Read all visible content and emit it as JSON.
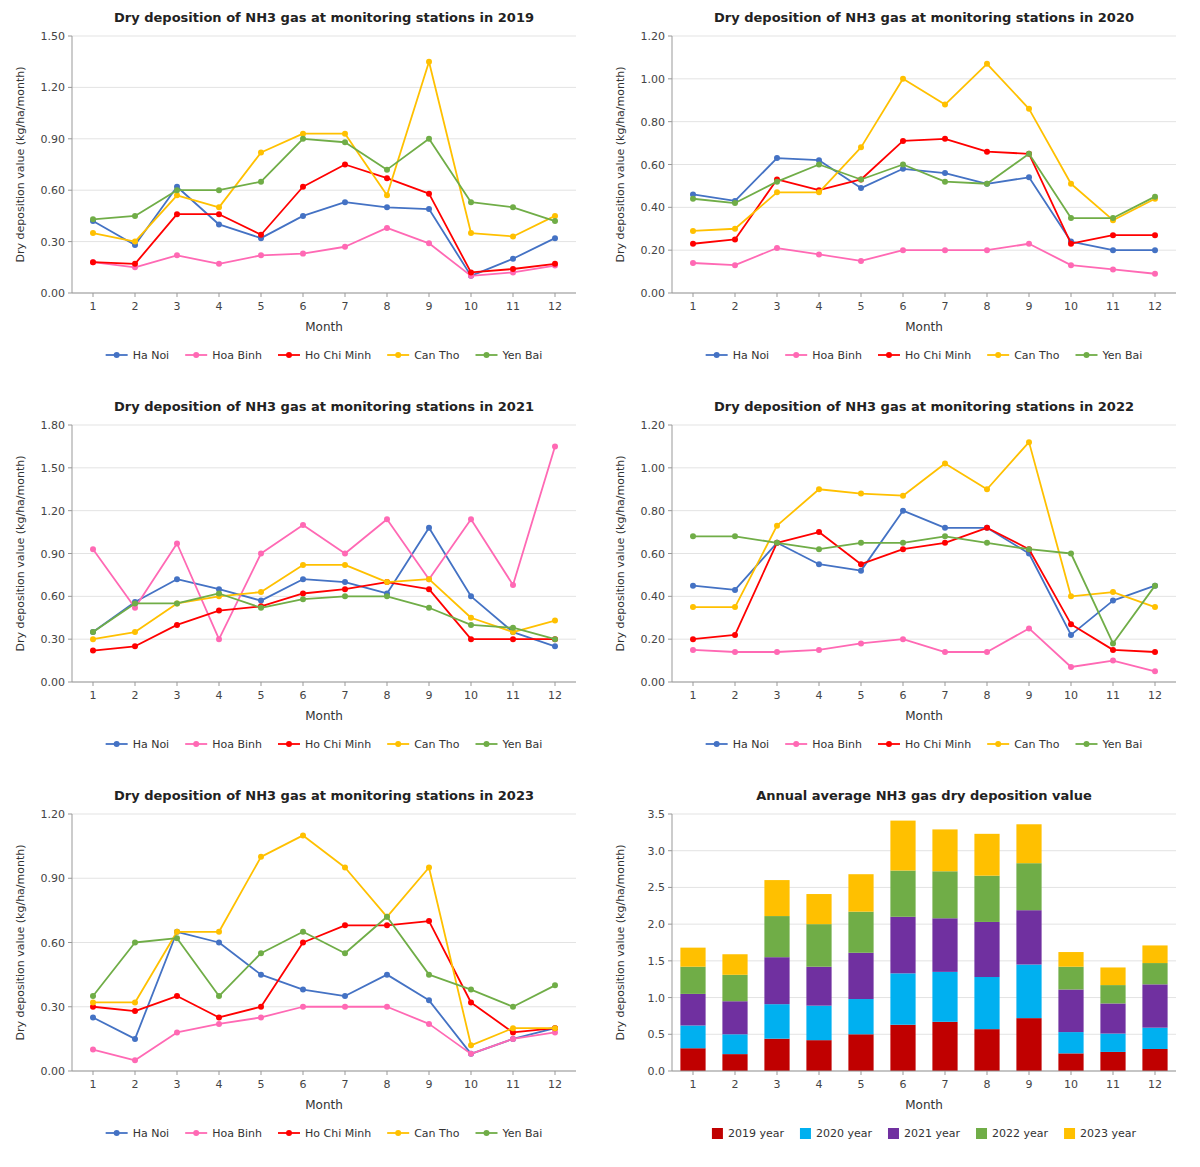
{
  "chart_data": [
    {
      "type": "line",
      "title": "Dry deposition of NH3 gas at monitoring stations in 2019",
      "xlabel": "Month",
      "ylabel": "Dry deposition value (kg/ha/month)",
      "x": [
        1,
        2,
        3,
        4,
        5,
        6,
        7,
        8,
        9,
        10,
        11,
        12
      ],
      "xlim": [
        0.5,
        12.5
      ],
      "xticks": [
        1,
        2,
        3,
        4,
        5,
        6,
        7,
        8,
        9,
        10,
        11,
        12
      ],
      "ylim": [
        0.0,
        1.5
      ],
      "yticks": [
        {
          "value": 0.0,
          "label": "0.00"
        },
        {
          "value": 0.3,
          "label": "0.30"
        },
        {
          "value": 0.6,
          "label": "0.60"
        },
        {
          "value": 0.9,
          "label": "0.90"
        },
        {
          "value": 1.2,
          "label": "1.20"
        },
        {
          "value": 1.5,
          "label": "1.50"
        }
      ],
      "grid": true,
      "legend": "bottom",
      "marker": "circle",
      "series": [
        {
          "name": "Ha Noi",
          "color": "#4472C4",
          "values": [
            0.42,
            0.28,
            0.62,
            0.4,
            0.32,
            0.45,
            0.53,
            0.5,
            0.49,
            0.1,
            0.2,
            0.32
          ]
        },
        {
          "name": "Hoa Binh",
          "color": "#FF69B4",
          "values": [
            0.18,
            0.15,
            0.22,
            0.17,
            0.22,
            0.23,
            0.27,
            0.38,
            0.29,
            0.1,
            0.12,
            0.16
          ]
        },
        {
          "name": "Ho Chi Minh",
          "color": "#FF0000",
          "values": [
            0.18,
            0.17,
            0.46,
            0.46,
            0.34,
            0.62,
            0.75,
            0.67,
            0.58,
            0.12,
            0.14,
            0.17
          ]
        },
        {
          "name": "Can Tho",
          "color": "#FFC000",
          "values": [
            0.35,
            0.3,
            0.57,
            0.5,
            0.82,
            0.93,
            0.93,
            0.57,
            1.35,
            0.35,
            0.33,
            0.45
          ]
        },
        {
          "name": "Yen Bai",
          "color": "#70AD47",
          "values": [
            0.43,
            0.45,
            0.6,
            0.6,
            0.65,
            0.9,
            0.88,
            0.72,
            0.9,
            0.53,
            0.5,
            0.42
          ]
        }
      ]
    },
    {
      "type": "line",
      "title": "Dry deposition of NH3 gas at monitoring stations in 2020",
      "xlabel": "Month",
      "ylabel": "Dry deposition value (kg/ha/month)",
      "x": [
        1,
        2,
        3,
        4,
        5,
        6,
        7,
        8,
        9,
        10,
        11,
        12
      ],
      "xlim": [
        0.5,
        12.5
      ],
      "xticks": [
        1,
        2,
        3,
        4,
        5,
        6,
        7,
        8,
        9,
        10,
        11,
        12
      ],
      "ylim": [
        0.0,
        1.2
      ],
      "yticks": [
        {
          "value": 0.0,
          "label": "0.00"
        },
        {
          "value": 0.2,
          "label": "0.20"
        },
        {
          "value": 0.4,
          "label": "0.40"
        },
        {
          "value": 0.6,
          "label": "0.60"
        },
        {
          "value": 0.8,
          "label": "0.80"
        },
        {
          "value": 1.0,
          "label": "1.00"
        },
        {
          "value": 1.2,
          "label": "1.20"
        }
      ],
      "grid": true,
      "legend": "bottom",
      "marker": "circle",
      "series": [
        {
          "name": "Ha Noi",
          "color": "#4472C4",
          "values": [
            0.46,
            0.43,
            0.63,
            0.62,
            0.49,
            0.58,
            0.56,
            0.51,
            0.54,
            0.24,
            0.2,
            0.2
          ]
        },
        {
          "name": "Hoa Binh",
          "color": "#FF69B4",
          "values": [
            0.14,
            0.13,
            0.21,
            0.18,
            0.15,
            0.2,
            0.2,
            0.2,
            0.23,
            0.13,
            0.11,
            0.09
          ]
        },
        {
          "name": "Ho Chi Minh",
          "color": "#FF0000",
          "values": [
            0.23,
            0.25,
            0.53,
            0.48,
            0.53,
            0.71,
            0.72,
            0.66,
            0.65,
            0.23,
            0.27,
            0.27
          ]
        },
        {
          "name": "Can Tho",
          "color": "#FFC000",
          "values": [
            0.29,
            0.3,
            0.47,
            0.47,
            0.68,
            1.0,
            0.88,
            1.07,
            0.86,
            0.51,
            0.34,
            0.44
          ]
        },
        {
          "name": "Yen Bai",
          "color": "#70AD47",
          "values": [
            0.44,
            0.42,
            0.52,
            0.6,
            0.53,
            0.6,
            0.52,
            0.51,
            0.65,
            0.35,
            0.35,
            0.45
          ]
        }
      ]
    },
    {
      "type": "line",
      "title": "Dry deposition of NH3 gas at monitoring stations in 2021",
      "xlabel": "Month",
      "ylabel": "Dry deposition value (kg/ha/month)",
      "x": [
        1,
        2,
        3,
        4,
        5,
        6,
        7,
        8,
        9,
        10,
        11,
        12
      ],
      "xlim": [
        0.5,
        12.5
      ],
      "xticks": [
        1,
        2,
        3,
        4,
        5,
        6,
        7,
        8,
        9,
        10,
        11,
        12
      ],
      "ylim": [
        0.0,
        1.8
      ],
      "yticks": [
        {
          "value": 0.0,
          "label": "0.00"
        },
        {
          "value": 0.3,
          "label": "0.30"
        },
        {
          "value": 0.6,
          "label": "0.60"
        },
        {
          "value": 0.9,
          "label": "0.90"
        },
        {
          "value": 1.2,
          "label": "1.20"
        },
        {
          "value": 1.5,
          "label": "1.50"
        },
        {
          "value": 1.8,
          "label": "1.80"
        }
      ],
      "grid": true,
      "legend": "bottom",
      "marker": "circle",
      "series": [
        {
          "name": "Ha Noi",
          "color": "#4472C4",
          "values": [
            0.35,
            0.56,
            0.72,
            0.65,
            0.57,
            0.72,
            0.7,
            0.62,
            1.08,
            0.6,
            0.35,
            0.25
          ]
        },
        {
          "name": "Hoa Binh",
          "color": "#FF69B4",
          "values": [
            0.93,
            0.52,
            0.97,
            0.3,
            0.9,
            1.1,
            0.9,
            1.14,
            0.72,
            1.14,
            0.68,
            1.65
          ]
        },
        {
          "name": "Ho Chi Minh",
          "color": "#FF0000",
          "values": [
            0.22,
            0.25,
            0.4,
            0.5,
            0.53,
            0.62,
            0.65,
            0.7,
            0.65,
            0.3,
            0.3,
            0.3
          ]
        },
        {
          "name": "Can Tho",
          "color": "#FFC000",
          "values": [
            0.3,
            0.35,
            0.55,
            0.6,
            0.63,
            0.82,
            0.82,
            0.7,
            0.72,
            0.45,
            0.35,
            0.43
          ]
        },
        {
          "name": "Yen Bai",
          "color": "#70AD47",
          "values": [
            0.35,
            0.55,
            0.55,
            0.62,
            0.52,
            0.58,
            0.6,
            0.6,
            0.52,
            0.4,
            0.38,
            0.3
          ]
        }
      ]
    },
    {
      "type": "line",
      "title": "Dry deposition of NH3 gas at monitoring stations in 2022",
      "xlabel": "Month",
      "ylabel": "Dry deposition value (kg/ha/month)",
      "x": [
        1,
        2,
        3,
        4,
        5,
        6,
        7,
        8,
        9,
        10,
        11,
        12
      ],
      "xlim": [
        0.5,
        12.5
      ],
      "xticks": [
        1,
        2,
        3,
        4,
        5,
        6,
        7,
        8,
        9,
        10,
        11,
        12
      ],
      "ylim": [
        0.0,
        1.2
      ],
      "yticks": [
        {
          "value": 0.0,
          "label": "0.00"
        },
        {
          "value": 0.2,
          "label": "0.20"
        },
        {
          "value": 0.4,
          "label": "0.40"
        },
        {
          "value": 0.6,
          "label": "0.60"
        },
        {
          "value": 0.8,
          "label": "0.80"
        },
        {
          "value": 1.0,
          "label": "1.00"
        },
        {
          "value": 1.2,
          "label": "1.20"
        }
      ],
      "grid": true,
      "legend": "bottom",
      "marker": "circle",
      "series": [
        {
          "name": "Ha Noi",
          "color": "#4472C4",
          "values": [
            0.45,
            0.43,
            0.65,
            0.55,
            0.52,
            0.8,
            0.72,
            0.72,
            0.6,
            0.22,
            0.38,
            0.45
          ]
        },
        {
          "name": "Hoa Binh",
          "color": "#FF69B4",
          "values": [
            0.15,
            0.14,
            0.14,
            0.15,
            0.18,
            0.2,
            0.14,
            0.14,
            0.25,
            0.07,
            0.1,
            0.05
          ]
        },
        {
          "name": "Ho Chi Minh",
          "color": "#FF0000",
          "values": [
            0.2,
            0.22,
            0.65,
            0.7,
            0.55,
            0.62,
            0.65,
            0.72,
            0.62,
            0.27,
            0.15,
            0.14
          ]
        },
        {
          "name": "Can Tho",
          "color": "#FFC000",
          "values": [
            0.35,
            0.35,
            0.73,
            0.9,
            0.88,
            0.87,
            1.02,
            0.9,
            1.12,
            0.4,
            0.42,
            0.35
          ]
        },
        {
          "name": "Yen Bai",
          "color": "#70AD47",
          "values": [
            0.68,
            0.68,
            0.65,
            0.62,
            0.65,
            0.65,
            0.68,
            0.65,
            0.62,
            0.6,
            0.18,
            0.45
          ]
        }
      ]
    },
    {
      "type": "line",
      "title": "Dry deposition of NH3 gas at monitoring stations in 2023",
      "xlabel": "Month",
      "ylabel": "Dry deposition value (kg/ha/month)",
      "x": [
        1,
        2,
        3,
        4,
        5,
        6,
        7,
        8,
        9,
        10,
        11,
        12
      ],
      "xlim": [
        0.5,
        12.5
      ],
      "xticks": [
        1,
        2,
        3,
        4,
        5,
        6,
        7,
        8,
        9,
        10,
        11,
        12
      ],
      "ylim": [
        0.0,
        1.2
      ],
      "yticks": [
        {
          "value": 0.0,
          "label": "0.00"
        },
        {
          "value": 0.3,
          "label": "0.30"
        },
        {
          "value": 0.6,
          "label": "0.60"
        },
        {
          "value": 0.9,
          "label": "0.90"
        },
        {
          "value": 1.2,
          "label": "1.20"
        }
      ],
      "grid": true,
      "legend": "bottom",
      "marker": "circle",
      "series": [
        {
          "name": "Ha Noi",
          "color": "#4472C4",
          "values": [
            0.25,
            0.15,
            0.65,
            0.6,
            0.45,
            0.38,
            0.35,
            0.45,
            0.33,
            0.08,
            0.15,
            0.2
          ]
        },
        {
          "name": "Hoa Binh",
          "color": "#FF69B4",
          "values": [
            0.1,
            0.05,
            0.18,
            0.22,
            0.25,
            0.3,
            0.3,
            0.3,
            0.22,
            0.08,
            0.15,
            0.18
          ]
        },
        {
          "name": "Ho Chi Minh",
          "color": "#FF0000",
          "values": [
            0.3,
            0.28,
            0.35,
            0.25,
            0.3,
            0.6,
            0.68,
            0.68,
            0.7,
            0.32,
            0.18,
            0.2
          ]
        },
        {
          "name": "Can Tho",
          "color": "#FFC000",
          "values": [
            0.32,
            0.32,
            0.65,
            0.65,
            1.0,
            1.1,
            0.95,
            0.72,
            0.95,
            0.12,
            0.2,
            0.2
          ]
        },
        {
          "name": "Yen Bai",
          "color": "#70AD47",
          "values": [
            0.35,
            0.6,
            0.62,
            0.35,
            0.55,
            0.65,
            0.55,
            0.72,
            0.45,
            0.38,
            0.3,
            0.4
          ]
        }
      ]
    },
    {
      "type": "bar",
      "title": "Annual average NH3 gas dry deposition value",
      "xlabel": "Month",
      "ylabel": "Dry deposition value (kg/ha/month)",
      "x": [
        1,
        2,
        3,
        4,
        5,
        6,
        7,
        8,
        9,
        10,
        11,
        12
      ],
      "xlim": [
        0.5,
        12.5
      ],
      "xticks": [
        1,
        2,
        3,
        4,
        5,
        6,
        7,
        8,
        9,
        10,
        11,
        12
      ],
      "ylim": [
        0.0,
        3.5
      ],
      "yticks": [
        {
          "value": 0,
          "label": "0.0"
        },
        0.5,
        {
          "value": 1,
          "label": "1.0"
        },
        1.5,
        {
          "value": 2,
          "label": "2.0"
        },
        2.5,
        {
          "value": 3,
          "label": "3.0"
        },
        3.5
      ],
      "grid": true,
      "legend": "bottom",
      "stacked": true,
      "series": [
        {
          "name": "2019 year",
          "color": "#C00000",
          "values": [
            0.31,
            0.23,
            0.44,
            0.42,
            0.5,
            0.63,
            0.67,
            0.57,
            0.72,
            0.24,
            0.26,
            0.3
          ]
        },
        {
          "name": "2020 year",
          "color": "#00B0F0",
          "values": [
            0.31,
            0.27,
            0.47,
            0.47,
            0.48,
            0.7,
            0.68,
            0.71,
            0.73,
            0.29,
            0.25,
            0.29
          ]
        },
        {
          "name": "2021 year",
          "color": "#7030A0",
          "values": [
            0.43,
            0.45,
            0.64,
            0.53,
            0.63,
            0.77,
            0.73,
            0.75,
            0.74,
            0.58,
            0.41,
            0.59
          ]
        },
        {
          "name": "2022 year",
          "color": "#70AD47",
          "values": [
            0.37,
            0.36,
            0.56,
            0.58,
            0.56,
            0.63,
            0.64,
            0.63,
            0.64,
            0.31,
            0.25,
            0.29
          ]
        },
        {
          "name": "2023 year",
          "color": "#FFC000",
          "values": [
            0.26,
            0.28,
            0.49,
            0.41,
            0.51,
            0.68,
            0.57,
            0.57,
            0.53,
            0.2,
            0.24,
            0.24
          ]
        }
      ]
    }
  ]
}
